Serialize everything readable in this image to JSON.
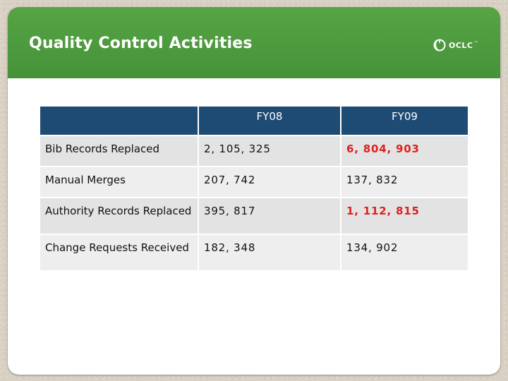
{
  "slide": {
    "title": "Quality Control Activities",
    "logo_text": "OCLC",
    "logo_icon": "oclc-logo-icon"
  },
  "colors": {
    "title_band": "#4f9b3f",
    "table_header": "#1e4b73",
    "highlight": "#e0201c"
  },
  "table": {
    "headers": [
      "",
      "FY08",
      "FY09"
    ],
    "rows": [
      {
        "label": "Bib Records Replaced",
        "fy08": "2, 105, 325",
        "fy09": "6, 804, 903",
        "fy09_highlight": true
      },
      {
        "label": "Manual  Merges",
        "fy08": "207, 742",
        "fy09": "137, 832",
        "fy09_highlight": false
      },
      {
        "label": "Authority Records Replaced",
        "fy08": "395, 817",
        "fy09": "1, 112, 815",
        "fy09_highlight": true
      },
      {
        "label": "Change Requests Received",
        "fy08": "182, 348",
        "fy09": "134, 902",
        "fy09_highlight": false
      }
    ]
  }
}
